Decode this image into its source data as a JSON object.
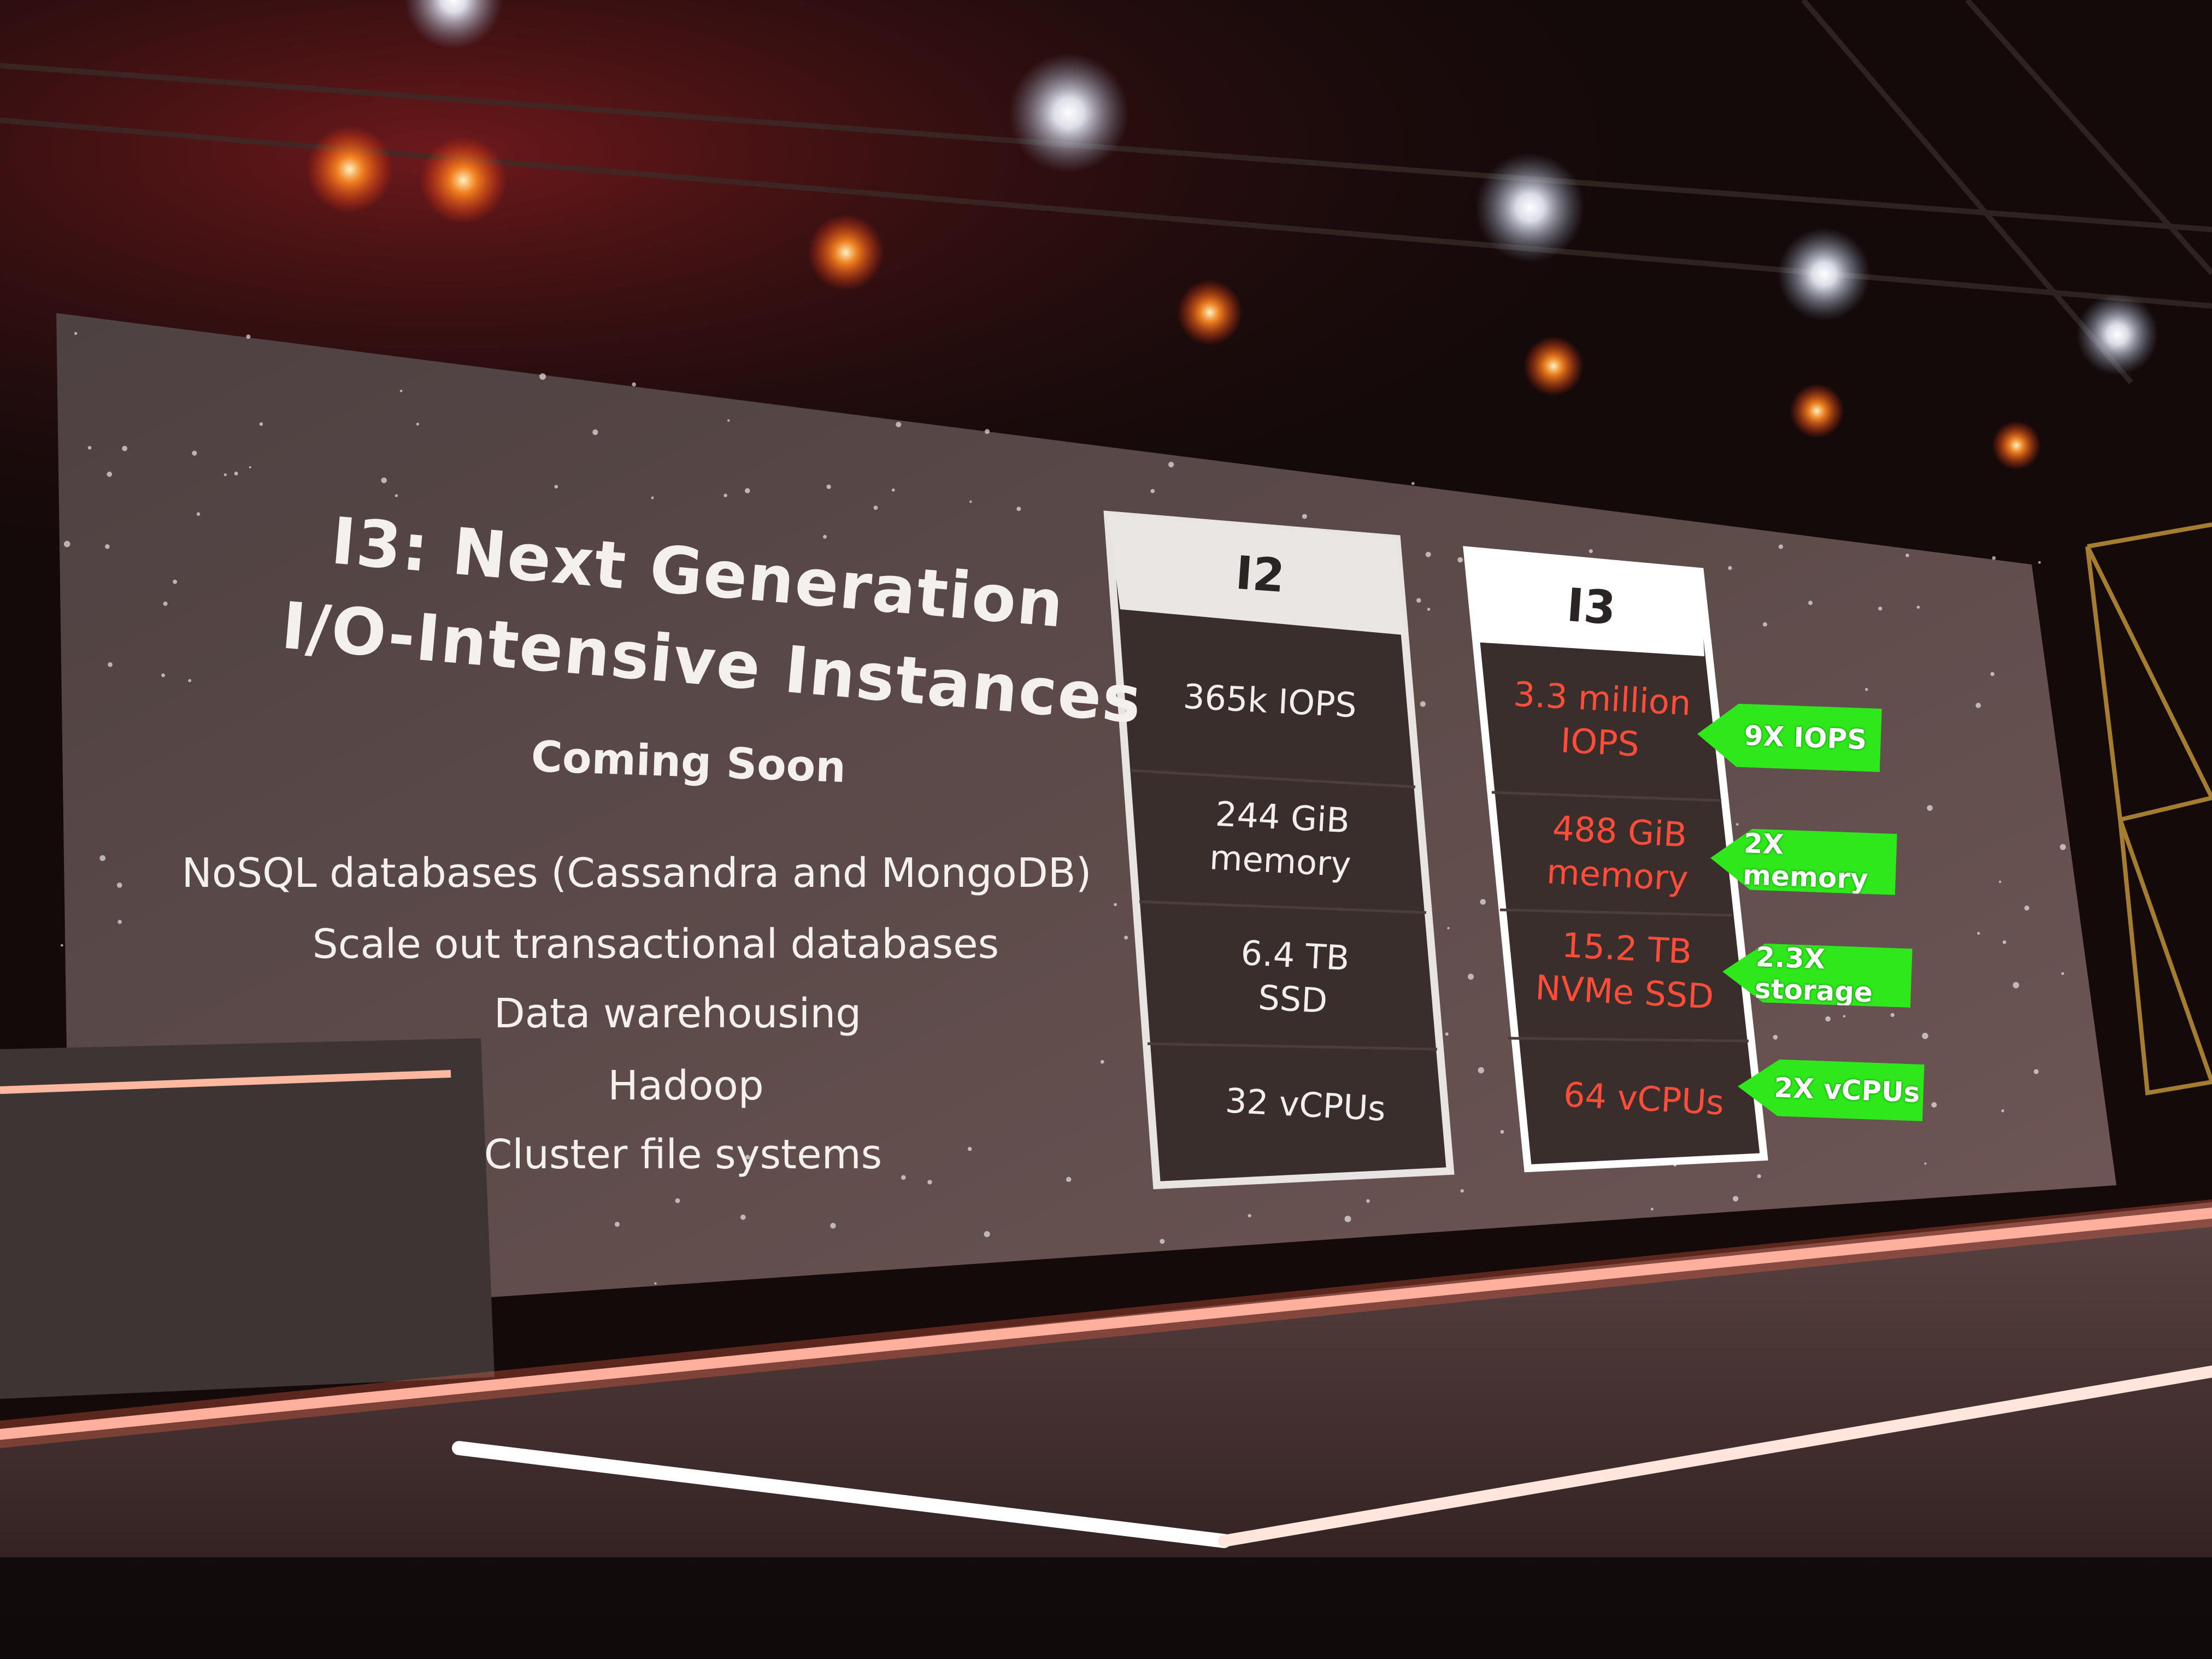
{
  "slide": {
    "title_line1": "I3: Next Generation",
    "title_line2": "I/O-Intensive Instances",
    "subtitle": "Coming Soon",
    "use_cases": [
      "NoSQL databases (Cassandra and MongoDB)",
      "Scale out transactional databases",
      "Data warehousing",
      "Hadoop",
      "Cluster file systems"
    ]
  },
  "comparison": {
    "i2": {
      "header": "I2",
      "cells": [
        "365k IOPS",
        "244 GiB\nmemory",
        "6.4 TB\nSSD",
        "32 vCPUs"
      ]
    },
    "i3": {
      "header": "I3",
      "cells": [
        "3.3 million\nIOPS",
        "488 GiB\nmemory",
        "15.2 TB\nNVMe SSD",
        "64 vCPUs"
      ]
    },
    "badges": [
      "9X IOPS",
      "2X memory",
      "2.3X storage",
      "2X vCPUs"
    ]
  },
  "colors": {
    "i3_text": "#ff4d3a",
    "badge_green": "#2ee81c",
    "stage_light": "#ff6a4a"
  }
}
